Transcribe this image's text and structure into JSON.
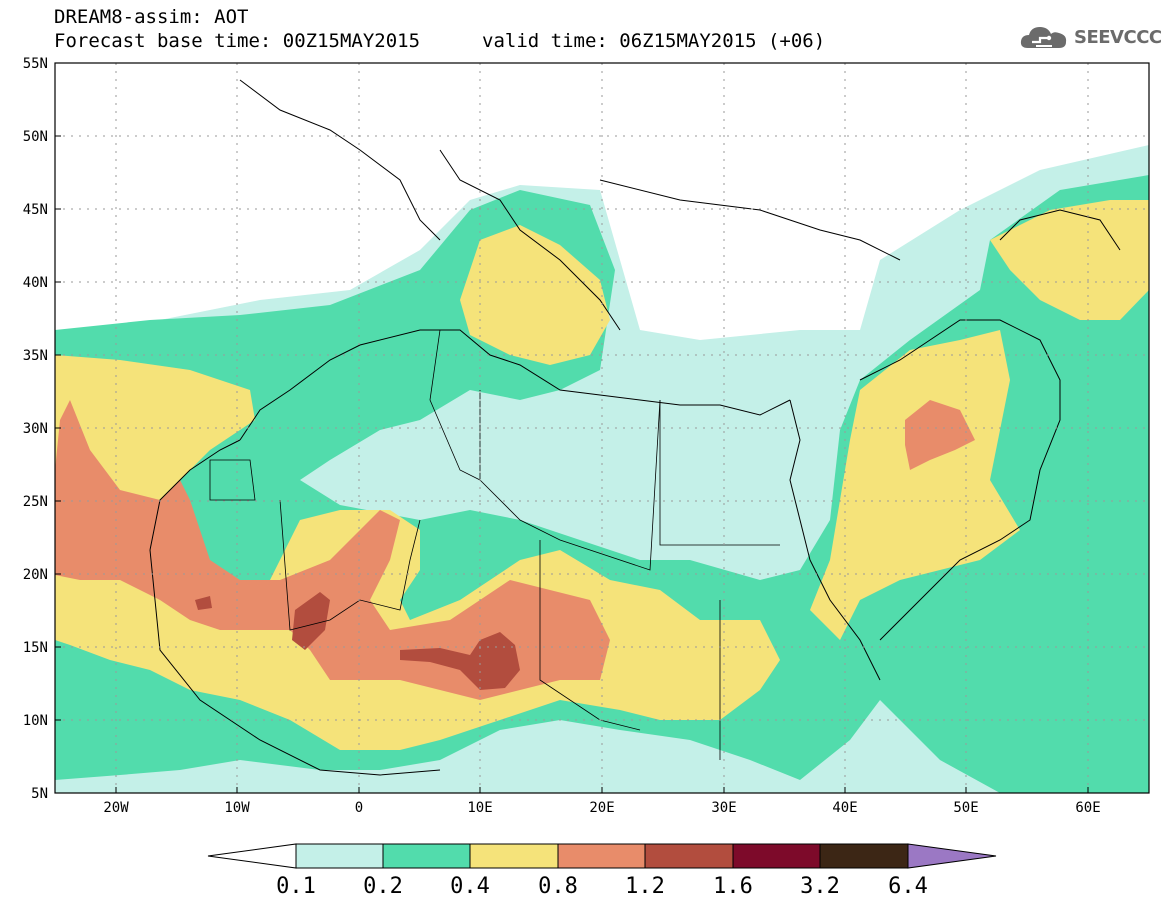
{
  "header": {
    "model_line": "DREAM8-assim: AOT",
    "base_time_line": "Forecast base time: 00Z15MAY2015",
    "valid_time_line": "valid time: 06Z15MAY2015 (+06)"
  },
  "logo": {
    "text": "SEEVCCC",
    "icon": "cloud-icon",
    "color": "#6b6b6b"
  },
  "map": {
    "projection": "lat-lon",
    "lon_range": [
      -25,
      65
    ],
    "lat_range": [
      5,
      55
    ],
    "lat_ticks": [
      "55N",
      "50N",
      "45N",
      "40N",
      "35N",
      "30N",
      "25N",
      "20N",
      "15N",
      "10N",
      "5N"
    ],
    "lon_ticks": [
      "20W",
      "10W",
      "0",
      "10E",
      "20E",
      "30E",
      "40E",
      "50E",
      "60E"
    ],
    "grid": true,
    "variable": "AOT"
  },
  "colorbar": {
    "labels": [
      "0.1",
      "0.2",
      "0.4",
      "0.8",
      "1.2",
      "1.6",
      "3.2",
      "6.4"
    ],
    "colors": [
      "#ffffff",
      "#c4f0e8",
      "#52dcac",
      "#f5e37a",
      "#e88c6a",
      "#b24d3e",
      "#7d0a2a",
      "#3c2615",
      "#9b78c4"
    ]
  }
}
